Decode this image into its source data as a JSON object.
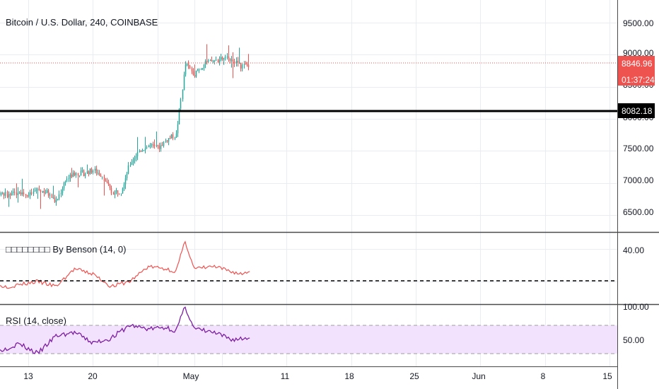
{
  "header": {
    "symbol_title": "Bitcoin / U.S. Dollar, 240, COINBASE"
  },
  "indicators": {
    "custom_label": "□□□□□□□□ By Benson (14, 0)",
    "rsi_label": "RSI (14, close)"
  },
  "price_axis": {
    "ticks": [
      "9500.00",
      "9000.00",
      "8500.00",
      "8000.00",
      "7500.00",
      "7000.00",
      "6500.00"
    ],
    "last_price": "8846.96",
    "countdown": "01:37:24",
    "hline_price": "8082.18"
  },
  "custom_axis": {
    "ticks": [
      "40.00"
    ]
  },
  "rsi_axis": {
    "ticks": [
      "100.00",
      "50.00"
    ]
  },
  "time_axis": {
    "ticks": [
      "13",
      "20",
      "May",
      "11",
      "18",
      "25",
      "Jun",
      "8",
      "15"
    ]
  },
  "colors": {
    "up": "#26a69a",
    "down": "#ef5350",
    "custom_line": "#ef5350",
    "rsi_line": "#7b1fa2",
    "rsi_band": "#f3e2fd",
    "last_price_bg": "#ef5350",
    "hline": "#000000"
  },
  "chart_data": [
    {
      "type": "candlestick",
      "title": "Bitcoin / U.S. Dollar, 240, COINBASE",
      "x_range": [
        "Apr 8",
        "Jun 17"
      ],
      "ylim": [
        6180,
        9800
      ],
      "last_price": 8846.96,
      "horizontal_line": 8082.18,
      "price_path": [
        [
          "Apr 8",
          7300
        ],
        [
          "Apr 9",
          6900
        ],
        [
          "Apr 10",
          6850
        ],
        [
          "Apr 11",
          6800
        ],
        [
          "Apr 12",
          6880
        ],
        [
          "Apr 13",
          6800
        ],
        [
          "Apr 14",
          6900
        ],
        [
          "Apr 15",
          6850
        ],
        [
          "Apr 16",
          6700
        ],
        [
          "Apr 17",
          7050
        ],
        [
          "Apr 18",
          7150
        ],
        [
          "Apr 19",
          7150
        ],
        [
          "Apr 20",
          7200
        ],
        [
          "Apr 21",
          7120
        ],
        [
          "Apr 22",
          6850
        ],
        [
          "Apr 23",
          6880
        ],
        [
          "Apr 24",
          7300
        ],
        [
          "Apr 25",
          7500
        ],
        [
          "Apr 26",
          7580
        ],
        [
          "Apr 27",
          7540
        ],
        [
          "Apr 28",
          7680
        ],
        [
          "Apr 29",
          7750
        ],
        [
          "Apr 30",
          8850
        ],
        [
          "May 1",
          8700
        ],
        [
          "May 2",
          8850
        ],
        [
          "May 3",
          8900
        ],
        [
          "May 4",
          8930
        ],
        [
          "May 5",
          8950
        ],
        [
          "May 6",
          8820
        ],
        [
          "May 7",
          8847
        ]
      ]
    },
    {
      "type": "line",
      "title": "□□□□□□□□ By Benson (14, 0)",
      "ylim": [
        20,
        45
      ],
      "reference_line": 27,
      "x": [
        "Apr 8",
        "Apr 11",
        "Apr 14",
        "Apr 16",
        "Apr 18",
        "Apr 20",
        "Apr 22",
        "Apr 24",
        "Apr 26",
        "Apr 28",
        "Apr 29",
        "Apr 30",
        "May 1",
        "May 3",
        "May 4",
        "May 6",
        "May 7"
      ],
      "values": [
        26,
        25,
        27,
        25,
        32,
        30,
        25,
        27,
        33,
        32,
        31,
        43,
        32,
        33,
        32,
        30,
        31
      ]
    },
    {
      "type": "line",
      "title": "RSI (14, close)",
      "ylim": [
        20,
        100
      ],
      "band": [
        30,
        70
      ],
      "x": [
        "Apr 8",
        "Apr 10",
        "Apr 12",
        "Apr 14",
        "Apr 16",
        "Apr 18",
        "Apr 20",
        "Apr 22",
        "Apr 24",
        "Apr 26",
        "Apr 28",
        "Apr 29",
        "Apr 30",
        "May 1",
        "May 3",
        "May 5",
        "May 7"
      ],
      "values": [
        42,
        35,
        44,
        30,
        55,
        60,
        45,
        52,
        70,
        65,
        67,
        62,
        96,
        65,
        60,
        50,
        52
      ]
    }
  ]
}
